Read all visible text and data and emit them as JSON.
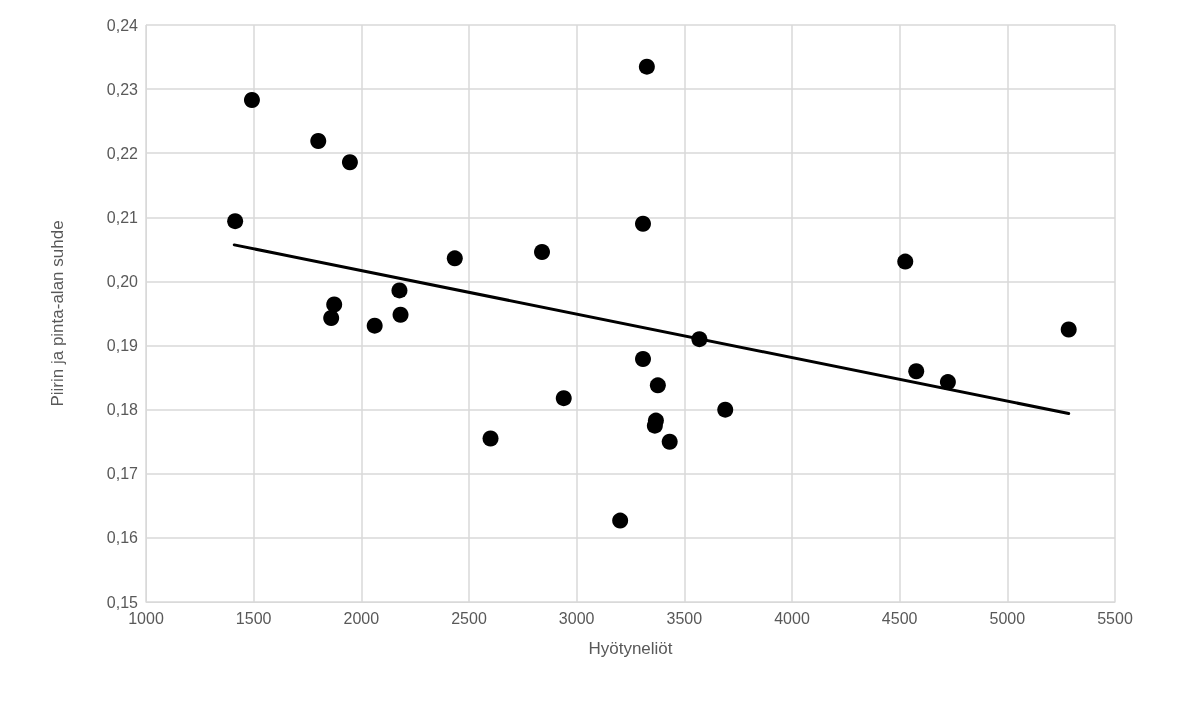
{
  "chart_data": {
    "type": "scatter",
    "xlabel": "Hyötyneliöt",
    "ylabel": "Piirin ja pinta-alan suhde",
    "marker": "circle",
    "grid": true,
    "xlim": [
      1000,
      5500
    ],
    "xticks": [
      1000,
      1500,
      2000,
      2500,
      3000,
      3500,
      4000,
      4500,
      5000,
      5500
    ],
    "ylim": [
      0.15,
      0.24
    ],
    "yticks": [
      {
        "value": 0.15,
        "label": "0,15"
      },
      {
        "value": 0.16,
        "label": "0,16"
      },
      {
        "value": 0.17,
        "label": "0,17"
      },
      {
        "value": 0.18,
        "label": "0,18"
      },
      {
        "value": 0.19,
        "label": "0,19"
      },
      {
        "value": 0.2,
        "label": "0,20"
      },
      {
        "value": 0.21,
        "label": "0,21"
      },
      {
        "value": 0.22,
        "label": "0,22"
      },
      {
        "value": 0.23,
        "label": "0,23"
      },
      {
        "value": 0.24,
        "label": "0,24"
      }
    ],
    "series": [
      {
        "color": "#000000",
        "x": [
          1414,
          1492,
          1800,
          1947,
          1874,
          1860,
          2062,
          2177,
          2182,
          2434,
          2839,
          3326,
          3308,
          4526,
          3570,
          5285,
          3308,
          3377,
          3368,
          3363,
          3432,
          3690,
          4577,
          4724,
          2940,
          2600,
          3202
        ],
        "values": [
          0.2094,
          0.2283,
          0.2219,
          0.2186,
          0.1964,
          0.1943,
          0.1931,
          0.1986,
          0.1948,
          0.2036,
          0.2046,
          0.2335,
          0.209,
          0.2031,
          0.191,
          0.1925,
          0.1879,
          0.1838,
          0.1783,
          0.1775,
          0.175,
          0.18,
          0.186,
          0.1843,
          0.1818,
          0.1755,
          0.1627
        ]
      },
      {
        "type": "line",
        "color": "#000000",
        "marker": "none",
        "x": [
          1410,
          5285
        ],
        "values": [
          0.2057,
          0.1794
        ]
      }
    ]
  }
}
